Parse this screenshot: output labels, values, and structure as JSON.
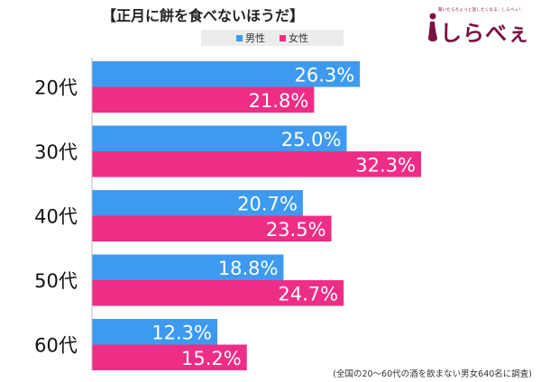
{
  "title": "【正月に餅を食べないほうだ】",
  "legend": {
    "male": "男性",
    "female": "女性"
  },
  "logo": {
    "tagline": "聞いたらちょっと話したくなる、しらべぇ！",
    "name": "しらべぇ"
  },
  "footnote": "(全国の20～60代の酒を飲まない男女640名に調査)",
  "colors": {
    "male": "#3d9af0",
    "female": "#ee2d86",
    "brand": "#7b1143"
  },
  "chart_data": {
    "type": "bar",
    "orientation": "horizontal",
    "title": "【正月に餅を食べないほうだ】",
    "categories": [
      "20代",
      "30代",
      "40代",
      "50代",
      "60代"
    ],
    "series": [
      {
        "name": "男性",
        "values": [
          26.3,
          25.0,
          20.7,
          18.8,
          12.3
        ],
        "labels": [
          "26.3%",
          "25.0%",
          "20.7%",
          "18.8%",
          "12.3%"
        ]
      },
      {
        "name": "女性",
        "values": [
          21.8,
          32.3,
          23.5,
          24.7,
          15.2
        ],
        "labels": [
          "21.8%",
          "32.3%",
          "23.5%",
          "24.7%",
          "15.2%"
        ]
      }
    ],
    "xlim": [
      0,
      40
    ],
    "unit": "%",
    "legend": "top-center",
    "grid": false
  }
}
